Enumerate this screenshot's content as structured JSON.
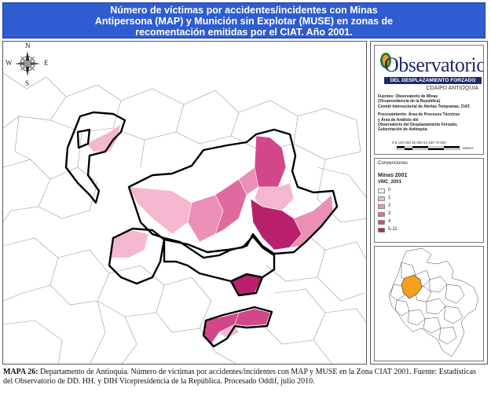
{
  "title": {
    "line1": "Número de víctimas por accidentes/incidentes con Minas",
    "line2": "Antipersona (MAP) y Munición sin Explotar (MUSE) en zonas de",
    "line3": "recomentación emitidas por el CIAT. Año 2001."
  },
  "compass": {
    "n": "N",
    "s": "S",
    "w": "W",
    "e": "E"
  },
  "logo": {
    "word": "Observatorio",
    "bar": "DEL DESPLAZAMIENTO FORZADO",
    "sub": "CDAIPD ANTIOQUIA"
  },
  "sources": {
    "l1": "Fuentes: Observatorio de Minas",
    "l2": "(Vicepresidencia de la República)",
    "l3": "Comité Intersectorial de Alertas Tempranas, CIAT.",
    "l4": "Procesamiento: Área de Procesos Técnicos",
    "l5": "y Área de Análisis del",
    "l6": "Observatorio del Desplazamiento Forzado,",
    "l7": "Gobernación de Antioquia."
  },
  "scale": {
    "numbers": "0 8 100 500 36 000 52 500 70 000",
    "unit": "Meters"
  },
  "legend": {
    "title": "Convenciones",
    "subtitle": "Minas 2001",
    "field": "VMC_2001",
    "items": [
      {
        "label": "0",
        "color": "#ffffff"
      },
      {
        "label": "1",
        "color": "#f5b6cf"
      },
      {
        "label": "2",
        "color": "#ec8fb6"
      },
      {
        "label": "3",
        "color": "#e06a9d"
      },
      {
        "label": "4",
        "color": "#d3478a"
      },
      {
        "label": "5-11",
        "color": "#b8206e"
      }
    ]
  },
  "colors": {
    "banner": "#2f5cd0",
    "department_highlight": "#f2a01e",
    "boundary": "#000000"
  },
  "caption": {
    "label": "MAPA 26:",
    "text": " Departamento de Antioquia. Número de víctimas por accidentes/incidentes con MAP y MUSE en la Zona CIAT 2001. Fuente: Estadísticas del Observatorio de DD. HH. y DIH Vicepresidencia de la República. Procesado Oddif, julio 2010."
  }
}
